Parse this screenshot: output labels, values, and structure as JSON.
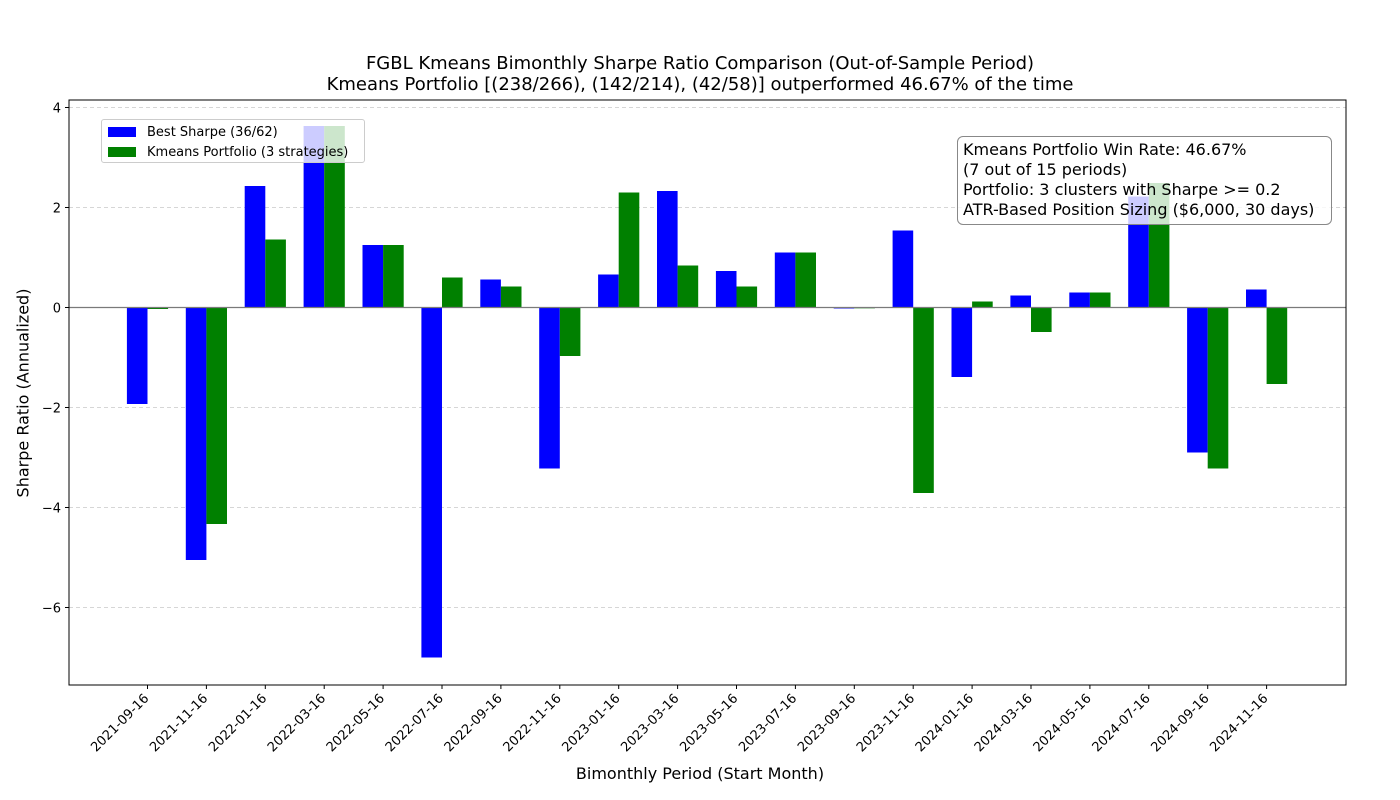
{
  "title_line1": "FGBL Kmeans Bimonthly Sharpe Ratio Comparison (Out-of-Sample Period)",
  "title_line2": "Kmeans Portfolio [(238/266), (142/214), (42/58)] outperformed 46.67% of the time",
  "annotation": [
    "Kmeans Portfolio Win Rate: 46.67%",
    "(7 out of 15 periods)",
    "Portfolio: 3 clusters with Sharpe >= 0.2",
    "ATR-Based Position Sizing ($6,000, 30 days)"
  ],
  "chart_data": {
    "type": "bar",
    "title": "FGBL Kmeans Bimonthly Sharpe Ratio Comparison (Out-of-Sample Period)\nKmeans Portfolio [(238/266), (142/214), (42/58)] outperformed 46.67% of the time",
    "xlabel": "Bimonthly Period (Start Month)",
    "ylabel": "Sharpe Ratio (Annualized)",
    "ylim": [
      -7.55,
      4.15
    ],
    "yticks": [
      -6,
      -4,
      -2,
      0,
      2,
      4
    ],
    "grid": "y-dashed",
    "legend_position": "upper-left",
    "categories": [
      "2021-09-16",
      "2021-11-16",
      "2022-01-16",
      "2022-03-16",
      "2022-05-16",
      "2022-07-16",
      "2022-09-16",
      "2022-11-16",
      "2023-01-16",
      "2023-03-16",
      "2023-05-16",
      "2023-07-16",
      "2023-09-16",
      "2023-11-16",
      "2024-01-16",
      "2024-03-16",
      "2024-05-16",
      "2024-07-16",
      "2024-09-16",
      "2024-11-16"
    ],
    "series": [
      {
        "name": "Best Sharpe (36/62)",
        "color": "#0000ff",
        "values": [
          -1.93,
          -5.05,
          2.43,
          3.63,
          1.25,
          -7.0,
          0.56,
          -3.22,
          0.66,
          2.33,
          0.73,
          1.1,
          -0.02,
          1.54,
          -1.39,
          0.24,
          0.3,
          2.22,
          -2.9,
          0.36
        ]
      },
      {
        "name": "Kmeans Portfolio (3 strategies)",
        "color": "#008000",
        "values": [
          -0.03,
          -4.33,
          1.36,
          3.63,
          1.25,
          0.6,
          0.42,
          -0.97,
          2.3,
          0.84,
          0.42,
          1.1,
          -0.01,
          -3.71,
          0.12,
          -0.49,
          0.3,
          2.49,
          -3.22,
          -1.53
        ]
      }
    ]
  }
}
